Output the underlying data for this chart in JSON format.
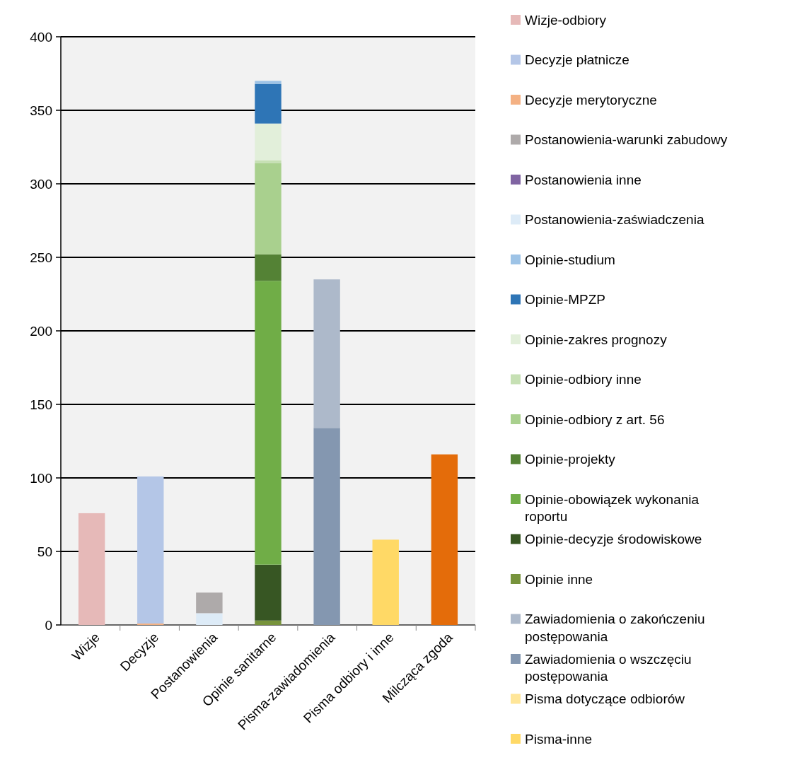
{
  "chart_data": {
    "type": "bar",
    "stacked": true,
    "categories": [
      "Wizje",
      "Decyzje",
      "Postanowienia",
      "Opinie sanitarne",
      "Pisma-zawiadomienia",
      "Pisma odbiory i inne",
      "Milcząca zgoda"
    ],
    "series": [
      {
        "color": "#e46c0a",
        "values": [
          null,
          null,
          null,
          null,
          null,
          null,
          116
        ]
      },
      {
        "name": "Pisma-inne",
        "color": "#ffd966",
        "values": [
          null,
          null,
          null,
          null,
          null,
          58,
          null
        ]
      },
      {
        "name": "Pisma dotyczące odbiorów",
        "color": "#ffe699",
        "values": [
          null,
          null,
          null,
          null,
          null,
          null,
          null
        ]
      },
      {
        "name": "Zawiadomienia o wszczęciu postępowania",
        "color": "#8497b0",
        "values": [
          null,
          null,
          null,
          null,
          134,
          null,
          null
        ]
      },
      {
        "name": "Zawiadomienia o zakończeniu postępowania",
        "color": "#adb9ca",
        "values": [
          null,
          null,
          null,
          null,
          101,
          null,
          null
        ]
      },
      {
        "name": "Opinie inne",
        "color": "#77933c",
        "values": [
          null,
          null,
          null,
          3,
          null,
          null,
          null
        ]
      },
      {
        "name": "Opinie-decyzje środowiskowe",
        "color": "#375623",
        "values": [
          null,
          null,
          null,
          38,
          null,
          null,
          null
        ]
      },
      {
        "name": "Opinie-obowiązek wykonania roportu",
        "color": "#70ad47",
        "values": [
          null,
          null,
          null,
          193,
          null,
          null,
          null
        ]
      },
      {
        "name": "Opinie-projekty",
        "color": "#548235",
        "values": [
          null,
          null,
          null,
          18,
          null,
          null,
          null
        ]
      },
      {
        "name": "Opinie-odbiory z art. 56",
        "color": "#a9d08e",
        "values": [
          null,
          null,
          null,
          62,
          null,
          null,
          null
        ]
      },
      {
        "name": "Opinie-odbiory inne",
        "color": "#c6e0b4",
        "values": [
          null,
          null,
          null,
          2,
          null,
          null,
          null
        ]
      },
      {
        "name": "Opinie-zakres prognozy",
        "color": "#e2efda",
        "values": [
          null,
          null,
          null,
          25,
          null,
          null,
          null
        ]
      },
      {
        "name": "Opinie-MPZP",
        "color": "#2e75b6",
        "values": [
          null,
          null,
          null,
          27,
          null,
          null,
          null
        ]
      },
      {
        "name": "Opinie-studium",
        "color": "#9dc3e6",
        "values": [
          null,
          null,
          null,
          2,
          null,
          null,
          null
        ]
      },
      {
        "name": "Postanowienia-zaświadczenia",
        "color": "#ddebf7",
        "values": [
          null,
          null,
          8,
          null,
          null,
          null,
          null
        ]
      },
      {
        "name": "Postanowienia inne",
        "color": "#8064a2",
        "values": [
          null,
          null,
          null,
          null,
          null,
          null,
          null
        ]
      },
      {
        "name": "Postanowienia-warunki zabudowy",
        "color": "#aeaaaa",
        "values": [
          null,
          null,
          14,
          null,
          null,
          null,
          null
        ]
      },
      {
        "name": "Decyzje merytoryczne",
        "color": "#f4b183",
        "values": [
          null,
          1,
          null,
          null,
          null,
          null,
          null
        ]
      },
      {
        "name": "Decyzje płatnicze",
        "color": "#b4c6e7",
        "values": [
          null,
          100,
          null,
          null,
          null,
          null,
          null
        ]
      },
      {
        "name": "Wizje-odbiory",
        "color": "#e6b9b8",
        "values": [
          76,
          null,
          null,
          null,
          null,
          null,
          null
        ]
      }
    ],
    "ylim": [
      0,
      400
    ],
    "yticks": [
      0,
      50,
      100,
      150,
      200,
      250,
      300,
      350,
      400
    ],
    "grid": "y",
    "legend": "right"
  }
}
